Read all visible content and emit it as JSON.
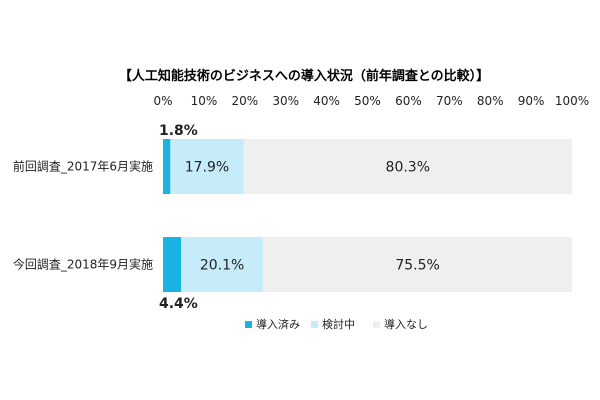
{
  "chart_data": {
    "type": "bar",
    "orientation": "horizontal",
    "stacked": true,
    "title": "【人工知能技術のビジネスへの導入状況（前年調査との比較）】",
    "categories": [
      "前回調査_2017年6月実施",
      "今回調査_2018年9月実施"
    ],
    "series": [
      {
        "name": "導入済み",
        "color": "#1ab2e0",
        "values": [
          1.8,
          4.4
        ]
      },
      {
        "name": "検討中",
        "color": "#c6ecfa",
        "values": [
          17.9,
          20.1
        ]
      },
      {
        "name": "導入なし",
        "color": "#efefef",
        "values": [
          80.3,
          75.5
        ]
      }
    ],
    "xlim": [
      0,
      100
    ],
    "x_ticks": [
      "0%",
      "10%",
      "20%",
      "30%",
      "40%",
      "50%",
      "60%",
      "70%",
      "80%",
      "90%",
      "100%"
    ],
    "data_labels": [
      [
        "1.8%",
        "17.9%",
        "80.3%"
      ],
      [
        "4.4%",
        "20.1%",
        "75.5%"
      ]
    ],
    "legend_position": "bottom",
    "grid": false
  }
}
